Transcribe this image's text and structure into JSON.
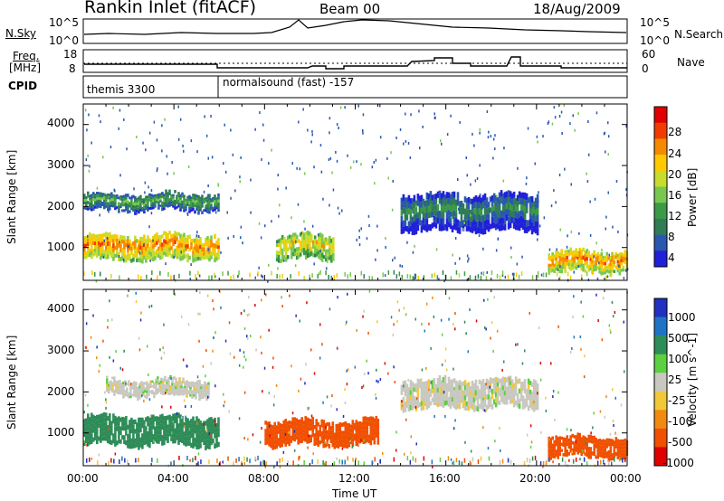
{
  "header": {
    "title": "Rankin Inlet (fitACF)",
    "beam": "Beam 00",
    "date": "18/Aug/2009"
  },
  "panels": {
    "nsky_label": "N.Sky",
    "nsearch_label": "N.Search",
    "freq_label": "Freq.",
    "freq_unit": "[MHz]",
    "nave_label": "Nave",
    "cpid_label": "CPID",
    "nsky_ticks": [
      "10^5",
      "10^0"
    ],
    "nsearch_ticks": [
      "10^5",
      "10^0"
    ],
    "freq_ticks": [
      "18",
      "8"
    ],
    "nave_ticks": [
      "60",
      "0"
    ],
    "cpid_segments": [
      "themis 3300",
      "normalsound (fast) -157"
    ]
  },
  "colorbars": {
    "power": {
      "label": "Power [dB]",
      "ticks": [
        "28",
        "24",
        "20",
        "16",
        "12",
        "8",
        "4"
      ],
      "colors": [
        "#e00000",
        "#f03c00",
        "#f58a00",
        "#ffc800",
        "#c8dc2c",
        "#78c850",
        "#3c9a46",
        "#2f7c55",
        "#2a58b0",
        "#2020d8"
      ]
    },
    "velocity": {
      "label": "Velocity [m s^-1]",
      "ticks": [
        "1000",
        "500",
        "100",
        "25",
        "-25",
        "-100",
        "-500",
        "-1000"
      ],
      "colors": [
        "#2030c0",
        "#1e74c4",
        "#2e8c58",
        "#5cd040",
        "#c8c8c0",
        "#f0c838",
        "#f08a10",
        "#f05000",
        "#e00000"
      ]
    }
  },
  "chart_data": [
    {
      "type": "heatmap",
      "name": "power",
      "ylabel": "Slant Range [km]",
      "ylim": [
        200,
        4500
      ],
      "yticks": [
        "4000",
        "3000",
        "2000",
        "1000"
      ],
      "xlim": [
        "00:00",
        "24:00"
      ],
      "bands": [
        {
          "t0": 0.0,
          "t1": 6.0,
          "r0": 700,
          "r1": 1300,
          "level": 24
        },
        {
          "t0": 0.0,
          "t1": 6.0,
          "r0": 1900,
          "r1": 2300,
          "level": 12
        },
        {
          "t0": 8.5,
          "t1": 11.0,
          "r0": 700,
          "r1": 1300,
          "level": 20
        },
        {
          "t0": 14.0,
          "t1": 20.0,
          "r0": 1400,
          "r1": 2300,
          "level": 8
        },
        {
          "t0": 20.5,
          "t1": 24.0,
          "r0": 400,
          "r1": 900,
          "level": 24
        }
      ]
    },
    {
      "type": "heatmap",
      "name": "velocity",
      "ylabel": "Slant Range [km]",
      "ylim": [
        200,
        4500
      ],
      "yticks": [
        "4000",
        "3000",
        "2000",
        "1000"
      ],
      "xlabel": "Time UT",
      "xticks": [
        "00:00",
        "04:00",
        "08:00",
        "12:00",
        "16:00",
        "20:00",
        "00:00"
      ],
      "bands": [
        {
          "t0": 0.0,
          "t1": 6.0,
          "r0": 700,
          "r1": 1400,
          "level": 100
        },
        {
          "t0": 1.0,
          "t1": 5.5,
          "r0": 1900,
          "r1": 2300,
          "level": 0
        },
        {
          "t0": 8.0,
          "t1": 13.0,
          "r0": 700,
          "r1": 1300,
          "level": -500
        },
        {
          "t0": 14.0,
          "t1": 20.0,
          "r0": 1600,
          "r1": 2300,
          "level": 0
        },
        {
          "t0": 20.5,
          "t1": 24.0,
          "r0": 400,
          "r1": 900,
          "level": -500
        }
      ]
    }
  ]
}
